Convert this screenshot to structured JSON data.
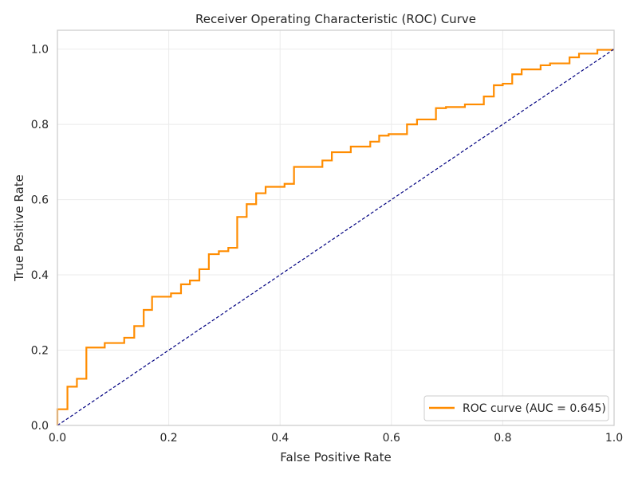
{
  "chart_data": {
    "type": "line",
    "title": "Receiver Operating Characteristic (ROC) Curve",
    "xlabel": "False Positive Rate",
    "ylabel": "True Positive Rate",
    "xlim": [
      0.0,
      1.0
    ],
    "ylim": [
      0.0,
      1.05
    ],
    "x_ticks": [
      "0.0",
      "0.2",
      "0.4",
      "0.6",
      "0.8",
      "1.0"
    ],
    "y_ticks": [
      "0.0",
      "0.2",
      "0.4",
      "0.6",
      "0.8",
      "1.0"
    ],
    "grid": true,
    "legend_position": "lower-right",
    "series": [
      {
        "name": "ROC curve (AUC = 0.645)",
        "color": "#ff8c00",
        "x": [
          0.0,
          0.0,
          0.018,
          0.018,
          0.035,
          0.035,
          0.052,
          0.052,
          0.085,
          0.085,
          0.12,
          0.12,
          0.138,
          0.138,
          0.155,
          0.155,
          0.17,
          0.17,
          0.204,
          0.204,
          0.222,
          0.222,
          0.238,
          0.238,
          0.255,
          0.255,
          0.272,
          0.272,
          0.29,
          0.29,
          0.307,
          0.307,
          0.323,
          0.323,
          0.34,
          0.34,
          0.357,
          0.357,
          0.374,
          0.374,
          0.408,
          0.408,
          0.425,
          0.425,
          0.476,
          0.476,
          0.493,
          0.493,
          0.527,
          0.527,
          0.562,
          0.562,
          0.578,
          0.578,
          0.595,
          0.595,
          0.628,
          0.628,
          0.646,
          0.646,
          0.68,
          0.68,
          0.698,
          0.698,
          0.732,
          0.732,
          0.766,
          0.766,
          0.784,
          0.784,
          0.8,
          0.8,
          0.817,
          0.817,
          0.834,
          0.834,
          0.868,
          0.868,
          0.885,
          0.885,
          0.92,
          0.92,
          0.937,
          0.937,
          0.97,
          0.97,
          1.0
        ],
        "y": [
          0.0,
          0.043,
          0.043,
          0.103,
          0.103,
          0.124,
          0.124,
          0.207,
          0.207,
          0.219,
          0.219,
          0.233,
          0.233,
          0.264,
          0.264,
          0.307,
          0.307,
          0.342,
          0.342,
          0.351,
          0.351,
          0.375,
          0.375,
          0.385,
          0.385,
          0.415,
          0.415,
          0.455,
          0.455,
          0.463,
          0.463,
          0.472,
          0.472,
          0.554,
          0.554,
          0.588,
          0.588,
          0.617,
          0.617,
          0.634,
          0.634,
          0.642,
          0.642,
          0.687,
          0.687,
          0.704,
          0.704,
          0.726,
          0.726,
          0.741,
          0.741,
          0.754,
          0.754,
          0.77,
          0.77,
          0.774,
          0.774,
          0.8,
          0.8,
          0.813,
          0.813,
          0.843,
          0.843,
          0.846,
          0.846,
          0.853,
          0.853,
          0.874,
          0.874,
          0.904,
          0.904,
          0.908,
          0.908,
          0.933,
          0.933,
          0.946,
          0.946,
          0.957,
          0.957,
          0.962,
          0.962,
          0.978,
          0.978,
          0.988,
          0.988,
          0.998,
          0.998
        ]
      },
      {
        "name": "",
        "color": "#000080",
        "dashed": true,
        "x": [
          0.0,
          1.0
        ],
        "y": [
          0.0,
          1.0
        ]
      }
    ]
  }
}
